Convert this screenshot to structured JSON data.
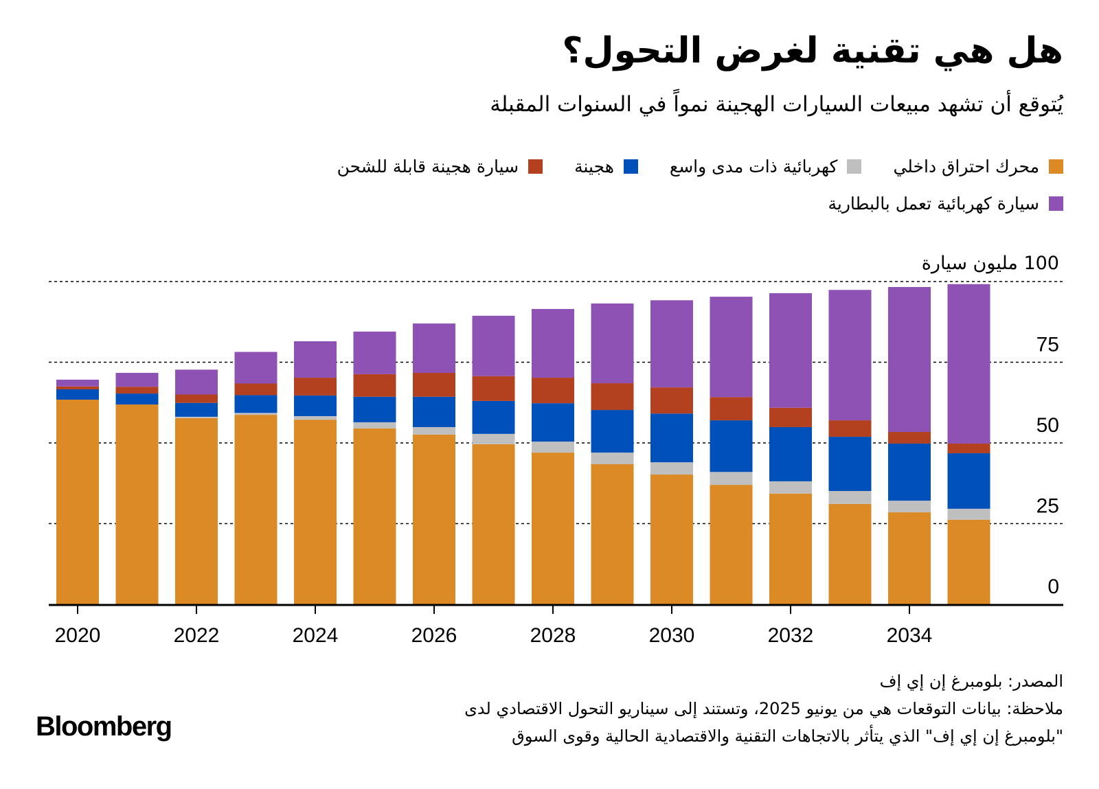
{
  "header": {
    "title": "هل هي تقنية لغرض التحول؟",
    "subtitle": "يُتوقع أن تشهد مبيعات السيارات الهجينة نمواً في السنوات المقبلة"
  },
  "legend": {
    "rows": [
      [
        {
          "label": "محرك احتراق داخلي",
          "color": "#DB8A26"
        },
        {
          "label": "كهربائية ذات مدى واسع",
          "color": "#BFBFBF"
        },
        {
          "label": "هجينة",
          "color": "#0050BB"
        },
        {
          "label": "سيارة هجينة قابلة للشحن",
          "color": "#B3401E"
        }
      ],
      [
        {
          "label": "سيارة كهربائية تعمل بالبطارية",
          "color": "#8E52B5"
        }
      ]
    ]
  },
  "chart_data": {
    "type": "bar",
    "stacked": true,
    "title": "هل هي تقنية لغرض التحول؟",
    "subtitle": "يُتوقع أن تشهد مبيعات السيارات الهجينة نمواً في السنوات المقبلة",
    "xlabel": "",
    "ylabel": "مليون سيارة",
    "y_unit_label": "100 مليون سيارة",
    "ylim": [
      0,
      100
    ],
    "yticks": [
      0,
      25,
      50,
      75,
      100
    ],
    "ytick_labels": [
      "0",
      "25",
      "50",
      "75",
      "100 مليون سيارة"
    ],
    "grid": true,
    "grid_style": "dotted",
    "y_axis_side": "right",
    "legend_position": "top",
    "categories": [
      "2020",
      "2021",
      "2022",
      "2023",
      "2024",
      "2025",
      "2026",
      "2027",
      "2028",
      "2029",
      "2030",
      "2031",
      "2032",
      "2033",
      "2034",
      "2035"
    ],
    "xtick_labels": [
      "2020",
      "2022",
      "2024",
      "2026",
      "2028",
      "2030",
      "2032",
      "2034"
    ],
    "series": [
      {
        "name": "محرك احتراق داخلي",
        "color": "#DB8A26",
        "values": [
          63.4,
          61.9,
          57.7,
          58.7,
          57.2,
          54.5,
          52.6,
          49.6,
          47.0,
          43.4,
          40.2,
          37.0,
          34.3,
          31.1,
          28.5,
          26.2
        ]
      },
      {
        "name": "كهربائية ذات مدى واسع",
        "color": "#BFBFBF",
        "values": [
          0.0,
          0.0,
          0.4,
          0.6,
          1.1,
          1.9,
          2.3,
          3.2,
          3.4,
          3.6,
          3.8,
          4.0,
          3.8,
          4.0,
          3.6,
          3.4
        ]
      },
      {
        "name": "هجينة",
        "color": "#0050BB",
        "values": [
          3.2,
          3.4,
          4.3,
          5.5,
          6.4,
          7.9,
          9.4,
          10.2,
          11.9,
          13.2,
          15.1,
          16.0,
          16.8,
          16.8,
          17.7,
          17.2
        ]
      },
      {
        "name": "سيارة هجينة قابلة للشحن",
        "color": "#B3401E",
        "values": [
          0.9,
          2.1,
          2.6,
          3.6,
          5.5,
          7.0,
          7.4,
          7.7,
          7.9,
          8.3,
          8.1,
          7.2,
          6.0,
          5.1,
          3.6,
          3.0
        ]
      },
      {
        "name": "سيارة كهربائية تعمل بالبطارية",
        "color": "#8E52B5",
        "values": [
          2.1,
          4.3,
          7.7,
          9.8,
          11.3,
          13.2,
          15.3,
          18.7,
          21.3,
          24.7,
          27.0,
          31.1,
          35.5,
          40.4,
          44.9,
          49.4
        ]
      }
    ]
  },
  "footer": {
    "source": "المصدر: بلومبرغ إن إي إف",
    "note_line1": "ملاحظة: بيانات التوقعات هي من يونيو 2025، وتستند إلى سيناريو التحول الاقتصادي لدى",
    "note_line2": "\"بلومبرغ إن إي إف\" الذي يتأثر بالاتجاهات التقنية والاقتصادية الحالية وقوى السوق"
  },
  "branding": {
    "logo": "Bloomberg"
  }
}
